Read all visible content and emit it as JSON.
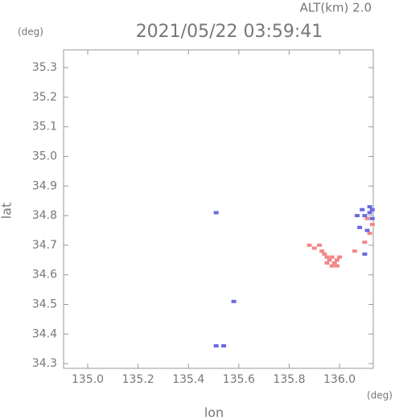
{
  "chart_data": {
    "type": "scatter",
    "title": "2021/05/22 03:59:41",
    "subtitle": "ALT(km) 2.0",
    "y_unit": "(deg)",
    "x_unit": "(deg)",
    "x_label": "lon",
    "y_label": "lat",
    "xlim": [
      134.904,
      136.134
    ],
    "ylim": [
      34.284,
      35.36
    ],
    "xticks": [
      {
        "value": 135,
        "label": "135.0"
      },
      135.2,
      135.4,
      135.6,
      135.8,
      {
        "value": 136,
        "label": "136.0"
      }
    ],
    "yticks": [
      34.3,
      34.4,
      34.5,
      34.6,
      34.7,
      34.8,
      34.9,
      {
        "value": 35,
        "label": "35.0"
      },
      35.1,
      35.2,
      35.3
    ],
    "series": [
      {
        "color": "#f08888",
        "x": [
          135.88,
          135.9,
          135.92,
          135.93,
          135.94,
          135.95,
          135.96,
          135.97,
          135.98,
          135.99,
          136.0,
          135.95,
          135.97,
          135.99,
          136.06,
          136.1,
          136.12,
          136.13,
          136.11
        ],
        "y": [
          34.7,
          34.69,
          34.7,
          34.68,
          34.67,
          34.66,
          34.65,
          34.66,
          34.64,
          34.65,
          34.66,
          34.64,
          34.63,
          34.63,
          34.68,
          34.71,
          34.74,
          34.77,
          34.79
        ]
      },
      {
        "color": "#6a6ae0",
        "x": [
          135.51,
          135.58,
          135.51,
          135.54,
          136.07,
          136.09,
          136.1,
          136.12,
          136.13,
          136.08,
          136.11,
          136.13,
          136.12,
          136.1
        ],
        "y": [
          34.81,
          34.51,
          34.36,
          34.36,
          34.8,
          34.82,
          34.8,
          34.81,
          34.82,
          34.76,
          34.75,
          34.79,
          34.83,
          34.67
        ]
      }
    ]
  }
}
